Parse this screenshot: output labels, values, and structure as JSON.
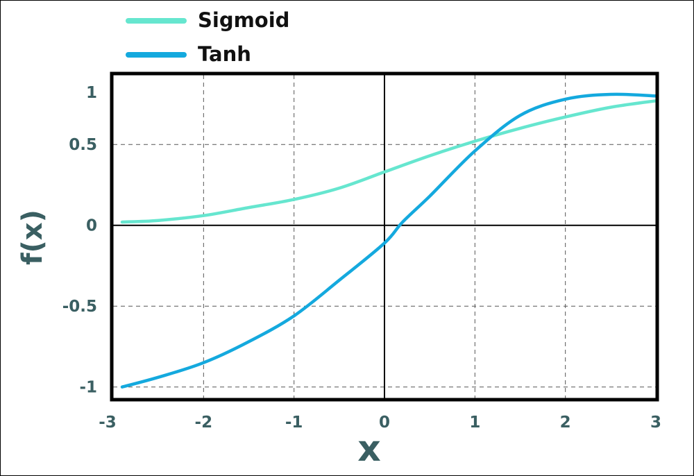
{
  "chart_data": {
    "type": "line",
    "xlabel": "x",
    "ylabel": "f(x)",
    "xlim": [
      -3,
      3
    ],
    "ylim": [
      -1.07,
      0.93
    ],
    "x_ticks": [
      -3,
      -2,
      -1,
      0,
      1,
      2,
      3
    ],
    "y_ticks": [
      {
        "value": -1,
        "label": "-1"
      },
      {
        "value": -0.5,
        "label": "-0.5"
      },
      {
        "value": 0,
        "label": "0"
      },
      {
        "value": 0.5,
        "label": "0.5"
      },
      {
        "value": 1,
        "label": "1"
      }
    ],
    "grid": true,
    "legend_position": "top-left",
    "series": [
      {
        "name": "Sigmoid",
        "color": "#66e6cf",
        "x": [
          -2.9,
          -2.5,
          -2,
          -1.5,
          -1,
          -0.5,
          0,
          0.5,
          1,
          1.5,
          2,
          2.5,
          3
        ],
        "y": [
          0.02,
          0.03,
          0.06,
          0.11,
          0.16,
          0.23,
          0.33,
          0.43,
          0.52,
          0.6,
          0.67,
          0.73,
          0.77
        ]
      },
      {
        "name": "Tanh",
        "color": "#14a9de",
        "x": [
          -2.9,
          -2.5,
          -2,
          -1.5,
          -1,
          -0.5,
          0,
          0.2,
          0.5,
          1,
          1.5,
          2,
          2.5,
          3
        ],
        "y": [
          -1.0,
          -0.94,
          -0.85,
          -0.72,
          -0.56,
          -0.34,
          -0.11,
          0.02,
          0.18,
          0.46,
          0.68,
          0.78,
          0.81,
          0.8
        ]
      }
    ]
  }
}
